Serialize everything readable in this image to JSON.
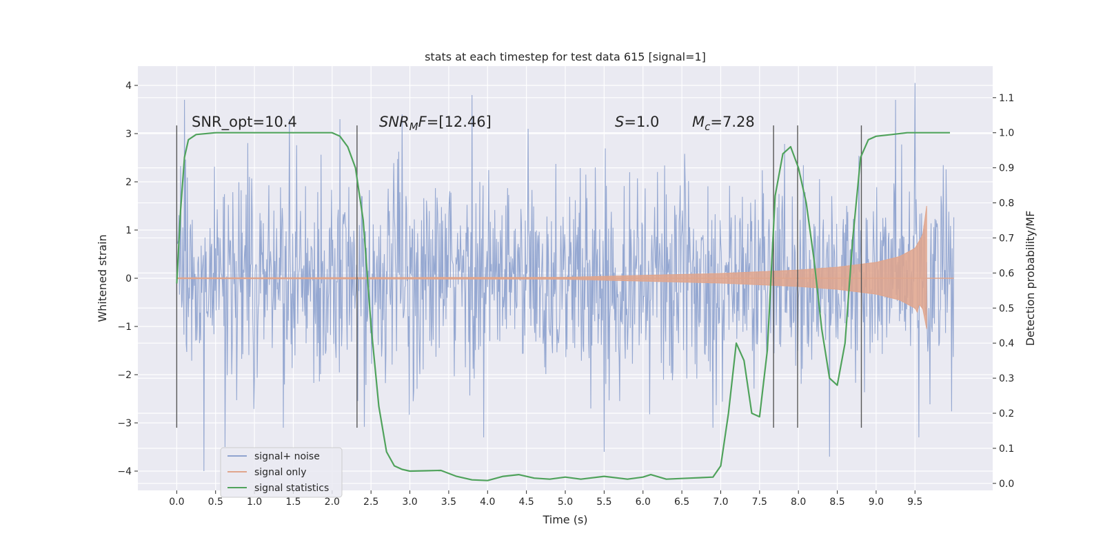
{
  "chart_data": {
    "type": "line",
    "title": "stats at each timestep for test data 615 [signal=1]",
    "xlabel": "Time (s)",
    "ylabel": "Whitened strain",
    "ylabel_right": "Detection probability/MF",
    "xlim": [
      -0.5,
      10.5
    ],
    "ylim": [
      -4.4,
      4.4
    ],
    "ylim_right": [
      -0.02,
      1.19
    ],
    "x_ticks": [
      "0.0",
      "0.5",
      "1.0",
      "1.5",
      "2.0",
      "2.5",
      "3.0",
      "3.5",
      "4.0",
      "4.5",
      "5.0",
      "5.5",
      "6.0",
      "6.5",
      "7.0",
      "7.5",
      "8.0",
      "8.5",
      "9.0",
      "9.5"
    ],
    "y_ticks": [
      "4",
      "3",
      "2",
      "1",
      "0",
      "−1",
      "−2",
      "−3",
      "−4"
    ],
    "y_right_ticks": [
      "1.1",
      "1.0",
      "0.9",
      "0.8",
      "0.7",
      "0.6",
      "0.5",
      "0.4",
      "0.3",
      "0.2",
      "0.1",
      "0.0"
    ],
    "grid": true,
    "legend_position": "lower-left",
    "annotations": {
      "snr_opt": "SNR_opt=10.4",
      "snr_mf_main": "SNR",
      "snr_mf_sub": "M",
      "snr_mf_tail": "F",
      "snr_mf_value": "=[12.46]",
      "s_sym": "S",
      "s_value": "=1.0",
      "mc_sym": "M",
      "mc_sub": "c",
      "mc_value": "=7.28"
    },
    "vertical_markers": [
      0.0,
      2.32,
      7.68,
      7.99,
      8.81
    ],
    "series": [
      {
        "name": "signal+ noise",
        "color": "#8fa3cf",
        "x_range": [
          0.0,
          10.0
        ],
        "envelope_std": 1.0,
        "peak_samples": [
          [
            0.1,
            3.7
          ],
          [
            0.35,
            -4.0
          ],
          [
            0.62,
            -3.5
          ],
          [
            1.45,
            3.3
          ],
          [
            2.1,
            3.3
          ],
          [
            2.9,
            3.4
          ],
          [
            3.8,
            3.8
          ],
          [
            3.95,
            -3.3
          ],
          [
            5.5,
            -3.6
          ],
          [
            8.4,
            -3.7
          ],
          [
            9.25,
            3.7
          ],
          [
            9.5,
            4.05
          ],
          [
            9.55,
            -3.3
          ]
        ]
      },
      {
        "name": "signal only",
        "color": "#e0a58c",
        "x_range": [
          0.0,
          9.65
        ],
        "points": [
          [
            0.0,
            0.01
          ],
          [
            5.0,
            0.02
          ],
          [
            6.0,
            0.06
          ],
          [
            7.0,
            0.1
          ],
          [
            8.0,
            0.17
          ],
          [
            8.5,
            0.23
          ],
          [
            9.0,
            0.33
          ],
          [
            9.3,
            0.45
          ],
          [
            9.5,
            0.62
          ],
          [
            9.6,
            0.9
          ],
          [
            9.65,
            1.5
          ]
        ]
      },
      {
        "name": "signal statistics",
        "color": "#4fa25b",
        "axis": "right",
        "points": [
          [
            0.0,
            0.57
          ],
          [
            0.05,
            0.78
          ],
          [
            0.1,
            0.93
          ],
          [
            0.15,
            0.98
          ],
          [
            0.25,
            0.995
          ],
          [
            0.5,
            1.0
          ],
          [
            1.0,
            1.0
          ],
          [
            1.5,
            1.0
          ],
          [
            2.0,
            1.0
          ],
          [
            2.1,
            0.99
          ],
          [
            2.2,
            0.96
          ],
          [
            2.3,
            0.9
          ],
          [
            2.4,
            0.75
          ],
          [
            2.5,
            0.45
          ],
          [
            2.6,
            0.22
          ],
          [
            2.7,
            0.09
          ],
          [
            2.8,
            0.05
          ],
          [
            2.9,
            0.04
          ],
          [
            3.0,
            0.035
          ],
          [
            3.2,
            0.036
          ],
          [
            3.4,
            0.037
          ],
          [
            3.6,
            0.02
          ],
          [
            3.8,
            0.01
          ],
          [
            4.0,
            0.008
          ],
          [
            4.2,
            0.02
          ],
          [
            4.4,
            0.025
          ],
          [
            4.6,
            0.015
          ],
          [
            4.8,
            0.012
          ],
          [
            5.0,
            0.018
          ],
          [
            5.2,
            0.012
          ],
          [
            5.5,
            0.02
          ],
          [
            5.8,
            0.012
          ],
          [
            6.0,
            0.018
          ],
          [
            6.1,
            0.025
          ],
          [
            6.3,
            0.012
          ],
          [
            6.6,
            0.015
          ],
          [
            6.9,
            0.018
          ],
          [
            7.0,
            0.05
          ],
          [
            7.1,
            0.2
          ],
          [
            7.2,
            0.4
          ],
          [
            7.3,
            0.35
          ],
          [
            7.4,
            0.2
          ],
          [
            7.5,
            0.19
          ],
          [
            7.6,
            0.38
          ],
          [
            7.7,
            0.82
          ],
          [
            7.8,
            0.94
          ],
          [
            7.9,
            0.96
          ],
          [
            8.0,
            0.9
          ],
          [
            8.1,
            0.8
          ],
          [
            8.2,
            0.64
          ],
          [
            8.3,
            0.44
          ],
          [
            8.4,
            0.3
          ],
          [
            8.5,
            0.28
          ],
          [
            8.6,
            0.4
          ],
          [
            8.7,
            0.7
          ],
          [
            8.8,
            0.93
          ],
          [
            8.9,
            0.98
          ],
          [
            9.0,
            0.99
          ],
          [
            9.2,
            0.995
          ],
          [
            9.4,
            1.0
          ],
          [
            9.7,
            1.0
          ],
          [
            9.95,
            1.0
          ]
        ]
      }
    ]
  }
}
